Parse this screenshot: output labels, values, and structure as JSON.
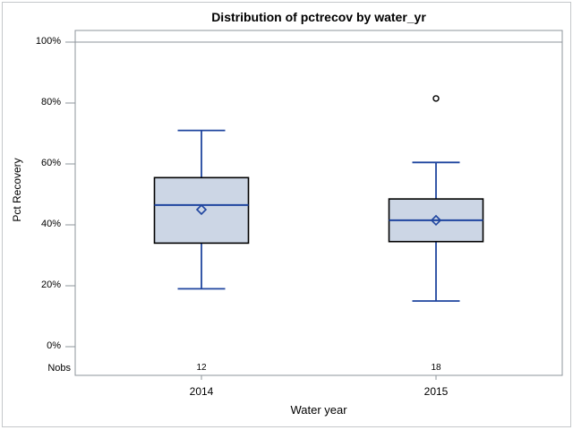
{
  "chart_data": {
    "type": "boxplot",
    "title": "Distribution of pctrecov by water_yr",
    "xlabel": "Water year",
    "ylabel": "Pct Recovery",
    "ylim": [
      0,
      100
    ],
    "yticks": [
      0,
      20,
      40,
      60,
      80,
      100
    ],
    "ytick_labels": [
      "0%",
      "20%",
      "40%",
      "60%",
      "80%",
      "100%"
    ],
    "gridline_at": 100,
    "legend": "none",
    "nobs_label": "Nobs",
    "groups": [
      {
        "label": "2014",
        "nobs": "12",
        "whisker_low": 19,
        "q1": 34,
        "median": 46.5,
        "mean": 45,
        "q3": 55.5,
        "whisker_high": 71,
        "outliers": []
      },
      {
        "label": "2015",
        "nobs": "18",
        "whisker_low": 15,
        "q1": 34.5,
        "median": 41.5,
        "mean": 41.5,
        "q3": 48.5,
        "whisker_high": 60.5,
        "outliers": [
          81.5
        ]
      }
    ],
    "colors": {
      "box_fill": "#ccd6e5",
      "box_border": "#000000",
      "whisker": "#1f459f",
      "axis": "#8e949b",
      "text": "#000000",
      "outlier": "#000000",
      "outer_border": "#c5c8ca"
    }
  }
}
